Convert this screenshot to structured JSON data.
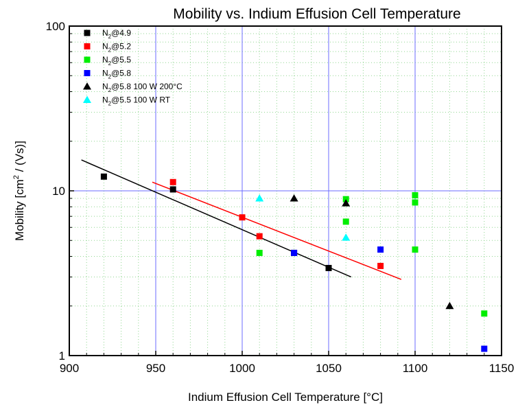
{
  "chart_data": {
    "type": "scatter",
    "title": "Mobility vs. Indium Effusion Cell Temperature",
    "xlabel": "Indium Effusion Cell Temperature [°C]",
    "ylabel_main": "Mobility [cm",
    "ylabel_sup": "2",
    "ylabel_tail": " / (Vs)]",
    "xlim": [
      900,
      1150
    ],
    "ylim": [
      1,
      100
    ],
    "yscale": "log",
    "x_ticks": [
      900,
      950,
      1000,
      1050,
      1100,
      1150
    ],
    "x_tick_labels": [
      "900",
      "950",
      "1000",
      "1050",
      "1100",
      "1150"
    ],
    "y_ticks": [
      1,
      10,
      100
    ],
    "y_tick_labels": [
      "1",
      "10",
      "100"
    ],
    "grid": true,
    "legend_position": "top-left",
    "series": [
      {
        "name_prefix": "N",
        "name_sub": "2",
        "name_suffix": "@4.9",
        "marker": "square",
        "color": "#000000",
        "points": [
          [
            920,
            12.2
          ],
          [
            960,
            10.2
          ],
          [
            1030,
            4.2
          ],
          [
            1050,
            3.4
          ]
        ]
      },
      {
        "name_prefix": "N",
        "name_sub": "2",
        "name_suffix": "@5.2",
        "marker": "square",
        "color": "#ff0000",
        "points": [
          [
            960,
            11.3
          ],
          [
            1000,
            6.9
          ],
          [
            1010,
            5.3
          ],
          [
            1080,
            3.5
          ]
        ]
      },
      {
        "name_prefix": "N",
        "name_sub": "2",
        "name_suffix": "@5.5",
        "marker": "square",
        "color": "#00ee00",
        "points": [
          [
            1010,
            4.2
          ],
          [
            1060,
            8.9
          ],
          [
            1060,
            6.5
          ],
          [
            1100,
            9.4
          ],
          [
            1100,
            8.5
          ],
          [
            1100,
            4.4
          ],
          [
            1140,
            1.8
          ]
        ]
      },
      {
        "name_prefix": "N",
        "name_sub": "2",
        "name_suffix": "@5.8",
        "marker": "square",
        "color": "#0000ff",
        "points": [
          [
            1030,
            4.2
          ],
          [
            1080,
            4.4
          ],
          [
            1140,
            1.1
          ]
        ]
      },
      {
        "name_prefix": "N",
        "name_sub": "2",
        "name_suffix": "@5.8 100 W  200°C",
        "marker": "triangle",
        "color": "#000000",
        "points": [
          [
            1030,
            9.0
          ],
          [
            1060,
            8.4
          ],
          [
            1120,
            2.0
          ]
        ]
      },
      {
        "name_prefix": "N",
        "name_sub": "2",
        "name_suffix": "@5.5 100 W  RT",
        "marker": "triangle",
        "color": "#00ffff",
        "points": [
          [
            1010,
            9.0
          ],
          [
            1060,
            5.2
          ]
        ]
      }
    ],
    "fit_lines": [
      {
        "color": "#000000",
        "points": [
          [
            907,
            15.4
          ],
          [
            1063,
            3.0
          ]
        ]
      },
      {
        "color": "#ff0000",
        "points": [
          [
            948,
            11.3
          ],
          [
            1092,
            2.9
          ]
        ]
      }
    ]
  }
}
